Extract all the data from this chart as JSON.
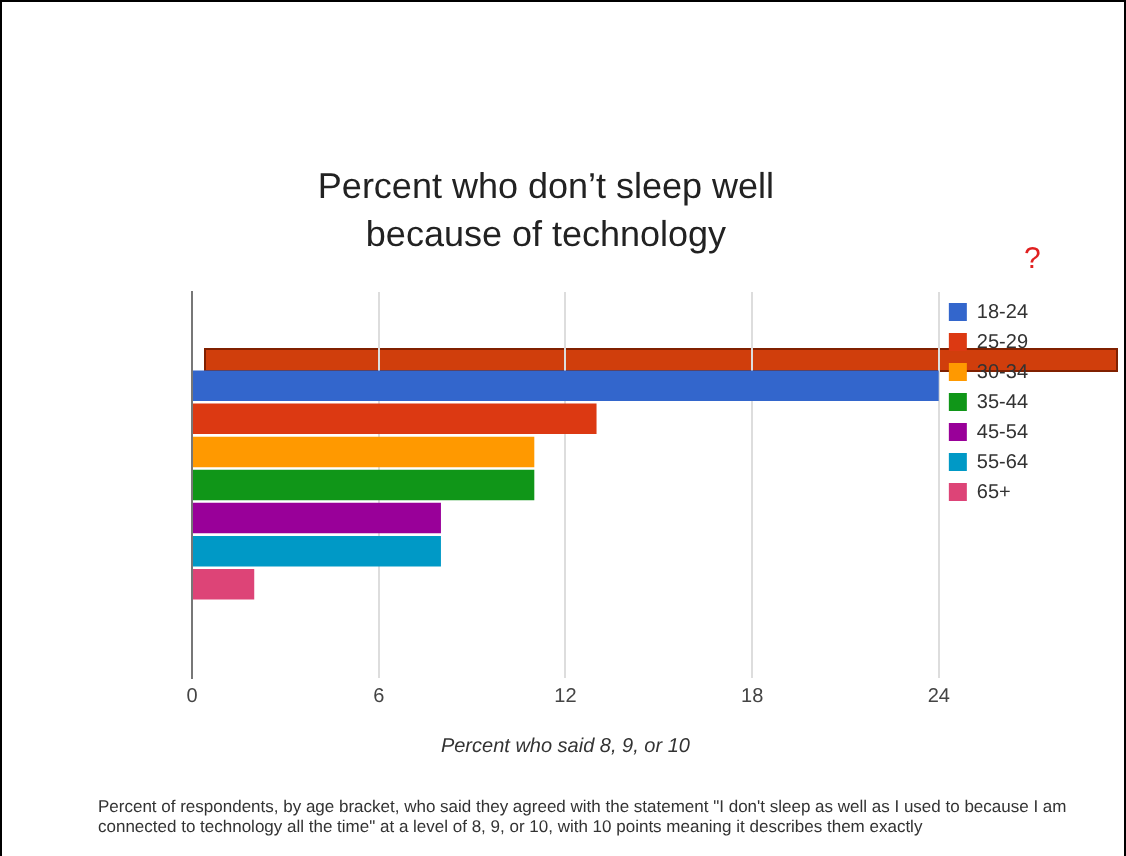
{
  "chart_data": {
    "type": "bar",
    "orientation": "horizontal",
    "title": "Percent who don’t sleep well because of technology",
    "xlabel": "Percent who said 8, 9, or 10",
    "categories": [
      null
    ],
    "series": [
      {
        "name": "18-24",
        "color": "#3366cc",
        "values": [
          24
        ]
      },
      {
        "name": "25-29",
        "color": "#dc3912",
        "values": [
          13
        ]
      },
      {
        "name": "30-34",
        "color": "#ff9900",
        "values": [
          11
        ]
      },
      {
        "name": "35-44",
        "color": "#109618",
        "values": [
          11
        ]
      },
      {
        "name": "45-54",
        "color": "#990099",
        "values": [
          8
        ]
      },
      {
        "name": "55-64",
        "color": "#0099c6",
        "values": [
          8
        ]
      },
      {
        "name": "65+",
        "color": "#dd4477",
        "values": [
          2
        ]
      }
    ],
    "xlim": [
      0,
      24
    ],
    "xticks": [
      0,
      6,
      12,
      18,
      24
    ],
    "grid": "x",
    "legend": "top right",
    "annotations": [
      "?",
      "Percent of respondents, by age bracket, who said they agreed with the statement \"I don't sleep as well as I used to because I am connected to technology all the time\" at a level of 8, 9, or 10, with 10 points meaning it describes them exactly"
    ]
  }
}
